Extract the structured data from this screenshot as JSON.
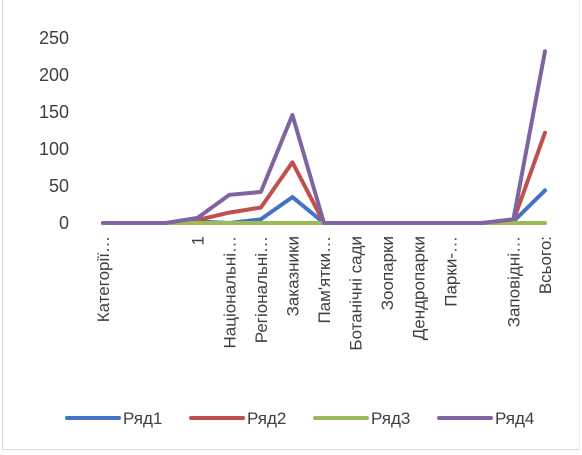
{
  "chart_data": {
    "type": "line",
    "title": "",
    "xlabel": "",
    "ylabel": "",
    "ylim": [
      0,
      250
    ],
    "yticks": [
      0,
      50,
      100,
      150,
      200,
      250
    ],
    "grid": false,
    "legend_position": "bottom",
    "categories": [
      "Категорії…",
      "",
      "",
      "1",
      "Національні…",
      "Регіональні…",
      "Заказники",
      "Пам'ятки…",
      "Ботанічні сади",
      "Зоопарки",
      "Дендропарки",
      "Парки-…",
      "",
      "Заповідні…",
      "Всього:"
    ],
    "series": [
      {
        "name": "Ряд1",
        "color": "#4472C4",
        "values": [
          0,
          0,
          0,
          2,
          0,
          5,
          35,
          0,
          0,
          0,
          0,
          0,
          0,
          2,
          44
        ]
      },
      {
        "name": "Ряд2",
        "color": "#C0504D",
        "values": [
          0,
          0,
          0,
          4,
          14,
          21,
          82,
          0,
          0,
          0,
          0,
          0,
          0,
          3,
          122
        ]
      },
      {
        "name": "Ряд3",
        "color": "#9BBB59",
        "values": [
          0,
          0,
          0,
          0,
          0,
          0,
          0,
          0,
          0,
          0,
          0,
          0,
          0,
          0,
          0
        ]
      },
      {
        "name": "Ряд4",
        "color": "#8064A2",
        "values": [
          0,
          0,
          0,
          7,
          38,
          42,
          146,
          0,
          0,
          0,
          0,
          0,
          0,
          5,
          232
        ]
      }
    ]
  }
}
